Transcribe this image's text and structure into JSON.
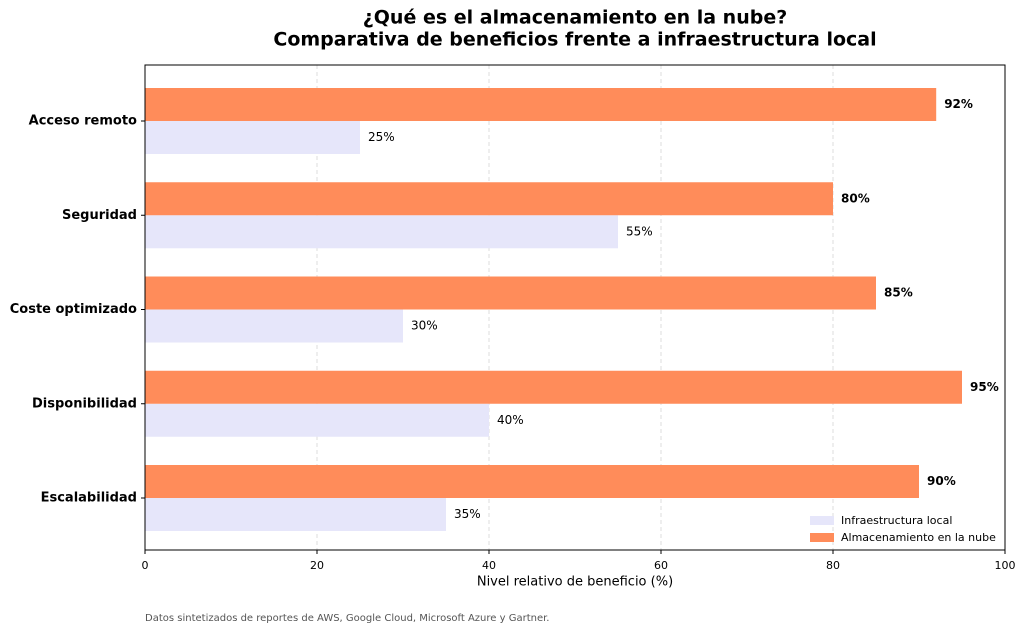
{
  "chart_data": {
    "type": "barh",
    "title": [
      "¿Qué es el almacenamiento en la nube?",
      "Comparativa de beneficios frente a infraestructura local"
    ],
    "xlabel": "Nivel relativo de beneficio (%)",
    "footnote": "Datos sintetizados de reportes de AWS, Google Cloud, Microsoft Azure y Gartner.",
    "categories": [
      "Acceso remoto",
      "Seguridad",
      "Coste optimizado",
      "Disponibilidad",
      "Escalabilidad"
    ],
    "series": [
      {
        "name": "Infraestructura local",
        "color": "#e6e6fa",
        "values": [
          25,
          55,
          30,
          40,
          35
        ],
        "value_labels": [
          "25%",
          "55%",
          "30%",
          "40%",
          "35%"
        ]
      },
      {
        "name": "Almacenamiento en la nube",
        "color": "#ff8c5a",
        "values": [
          92,
          80,
          85,
          95,
          90
        ],
        "value_labels": [
          "92%",
          "80%",
          "85%",
          "95%",
          "90%"
        ]
      }
    ],
    "xlim": [
      0,
      100
    ],
    "xticks": [
      0,
      20,
      40,
      60,
      80,
      100
    ],
    "grid": true,
    "legend": "lower right"
  }
}
